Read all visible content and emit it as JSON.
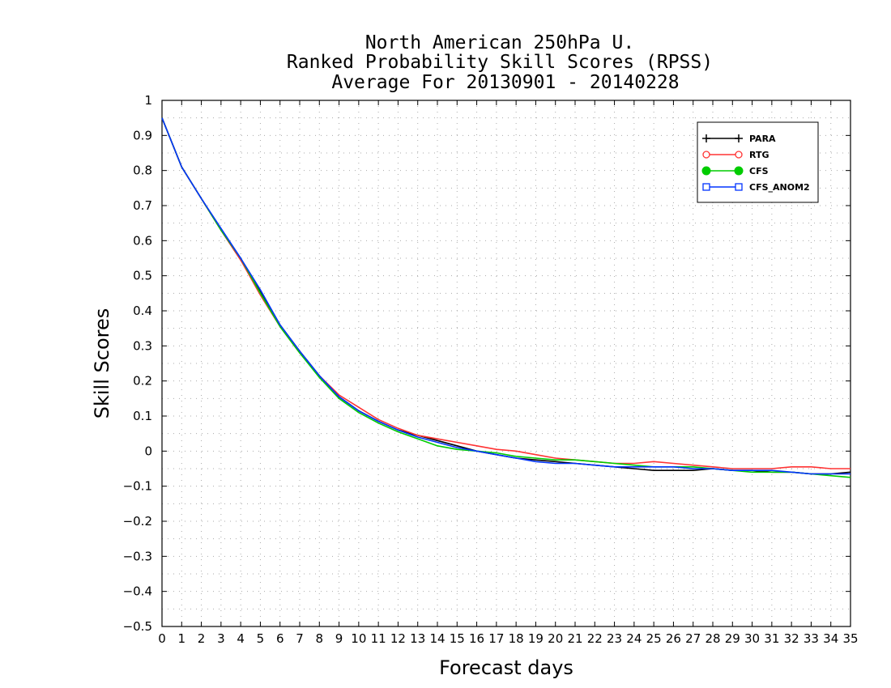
{
  "chart_data": {
    "type": "line",
    "title": [
      "North American 250hPa U.",
      "Ranked Probability Skill Scores (RPSS)",
      "Average For 20130901 - 20140228"
    ],
    "xlabel": "Forecast days",
    "ylabel": "Skill Scores",
    "xlim": [
      0,
      35
    ],
    "ylim": [
      -0.5,
      1
    ],
    "xticks": [
      0,
      1,
      2,
      3,
      4,
      5,
      6,
      7,
      8,
      9,
      10,
      11,
      12,
      13,
      14,
      15,
      16,
      17,
      18,
      19,
      20,
      21,
      22,
      23,
      24,
      25,
      26,
      27,
      28,
      29,
      30,
      31,
      32,
      33,
      34,
      35
    ],
    "yticks": [
      1,
      0.9,
      0.8,
      0.7,
      0.6,
      0.5,
      0.4,
      0.3,
      0.2,
      0.1,
      0,
      -0.1,
      -0.2,
      -0.3,
      -0.4,
      -0.5
    ],
    "ytick_labels": [
      "1",
      "0.9",
      "0.8",
      "0.7",
      "0.6",
      "0.5",
      "0.4",
      "0.3",
      "0.2",
      "0.1",
      "0",
      "−0.1",
      "−0.2",
      "−0.3",
      "−0.4",
      "−0.5"
    ],
    "grid": true,
    "legend_position": "top-right",
    "x": [
      0,
      1,
      2,
      3,
      4,
      5,
      6,
      7,
      8,
      9,
      10,
      11,
      12,
      13,
      14,
      15,
      16,
      17,
      18,
      19,
      20,
      21,
      22,
      23,
      24,
      25,
      26,
      27,
      28,
      29,
      30,
      31,
      32,
      33,
      34,
      35
    ],
    "series": [
      {
        "name": "PARA",
        "color": "#000000",
        "marker": "plus",
        "values": [
          0.95,
          0.81,
          0.72,
          0.63,
          0.545,
          0.455,
          0.36,
          0.285,
          0.215,
          0.155,
          0.115,
          0.085,
          0.06,
          0.045,
          0.03,
          0.015,
          0.0,
          -0.01,
          -0.02,
          -0.025,
          -0.03,
          -0.035,
          -0.04,
          -0.045,
          -0.05,
          -0.055,
          -0.055,
          -0.055,
          -0.05,
          -0.055,
          -0.055,
          -0.06,
          -0.06,
          -0.065,
          -0.065,
          -0.06
        ]
      },
      {
        "name": "RTG",
        "color": "#ff3333",
        "marker": "circle-open",
        "values": [
          0.95,
          0.81,
          0.72,
          0.63,
          0.545,
          0.445,
          0.355,
          0.28,
          0.215,
          0.16,
          0.125,
          0.09,
          0.065,
          0.045,
          0.035,
          0.025,
          0.015,
          0.005,
          0.0,
          -0.01,
          -0.02,
          -0.025,
          -0.03,
          -0.035,
          -0.035,
          -0.03,
          -0.035,
          -0.04,
          -0.045,
          -0.05,
          -0.05,
          -0.05,
          -0.045,
          -0.045,
          -0.05,
          -0.05
        ]
      },
      {
        "name": "CFS",
        "color": "#00cc00",
        "marker": "circle-filled",
        "values": [
          0.95,
          0.81,
          0.72,
          0.63,
          0.55,
          0.45,
          0.355,
          0.28,
          0.21,
          0.15,
          0.11,
          0.08,
          0.055,
          0.035,
          0.015,
          0.005,
          0.0,
          -0.005,
          -0.015,
          -0.02,
          -0.025,
          -0.025,
          -0.03,
          -0.035,
          -0.04,
          -0.045,
          -0.045,
          -0.045,
          -0.05,
          -0.055,
          -0.06,
          -0.06,
          -0.06,
          -0.065,
          -0.07,
          -0.075
        ]
      },
      {
        "name": "CFS_ANOM2",
        "color": "#0033ff",
        "marker": "square-open",
        "values": [
          0.95,
          0.81,
          0.72,
          0.635,
          0.55,
          0.46,
          0.36,
          0.285,
          0.215,
          0.155,
          0.115,
          0.085,
          0.06,
          0.04,
          0.025,
          0.01,
          0.0,
          -0.01,
          -0.02,
          -0.03,
          -0.035,
          -0.035,
          -0.04,
          -0.045,
          -0.045,
          -0.045,
          -0.045,
          -0.05,
          -0.05,
          -0.055,
          -0.055,
          -0.055,
          -0.06,
          -0.065,
          -0.065,
          -0.065
        ]
      }
    ]
  }
}
